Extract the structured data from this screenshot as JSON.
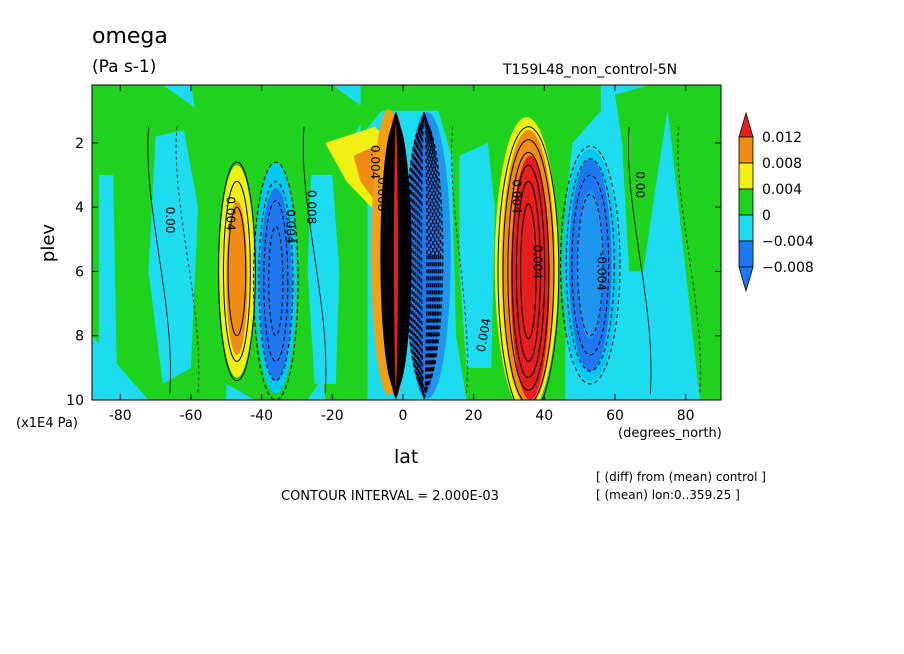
{
  "chart_data": {
    "type": "heatmap",
    "title": "omega",
    "units_label": "(Pa s-1)",
    "experiment_label": "T159L48_non_control-5N",
    "xlabel": "lat",
    "x_unit_label": "(degrees_north)",
    "ylabel": "plev",
    "y_unit_label": "(x1E4 Pa)",
    "xlim": [
      -88,
      90
    ],
    "ylim": [
      0.2,
      10
    ],
    "y_reversed": true,
    "x_ticks": [
      -80,
      -60,
      -40,
      -20,
      0,
      20,
      40,
      60,
      80
    ],
    "x_tick_labels": [
      "-80",
      "-60",
      "-40",
      "-20",
      "0",
      "20",
      "40",
      "60",
      "80"
    ],
    "y_ticks": [
      2,
      4,
      6,
      8,
      10
    ],
    "y_tick_labels": [
      "2",
      "4",
      "6",
      "8",
      "10"
    ],
    "contour_interval_label": "CONTOUR INTERVAL = 2.000E-03",
    "notes": [
      "[ (diff) from (mean) control ]",
      "[ (mean) lon:0..359.25 ]"
    ],
    "colorbar": {
      "levels": [
        0.012,
        0.008,
        0.004,
        0,
        -0.004,
        -0.008
      ],
      "labels": [
        "0.012",
        "0.008",
        "0.004",
        "0",
        "−0.004",
        "−0.008"
      ],
      "colors": [
        "#e61e1e",
        "#f08c14",
        "#f0f014",
        "#1ed21e",
        "#1edcf0",
        "#1e78f0"
      ]
    },
    "background_color": "#1edcf0",
    "features": [
      {
        "name": "equatorial-positive-cell",
        "value": 0.012,
        "lat": [
          -4,
          1
        ],
        "plev": [
          1.1,
          9.9
        ],
        "color": "#e61e1e"
      },
      {
        "name": "equatorial-negative-cell",
        "value": -0.012,
        "lat": [
          1,
          10
        ],
        "plev": [
          1.1,
          9.9
        ],
        "color": "#1e78f0"
      },
      {
        "name": "nh-positive-core",
        "value": 0.012,
        "lat": [
          31,
          41
        ],
        "plev": [
          2.5,
          9.5
        ],
        "color": "#e61e1e"
      },
      {
        "name": "nh-negative-cell",
        "value": -0.008,
        "lat": [
          45,
          60
        ],
        "plev": [
          2.3,
          9.2
        ],
        "color": "#1e78f0"
      },
      {
        "name": "sh-positive-cell",
        "value": 0.006,
        "lat": [
          -51,
          -43
        ],
        "plev": [
          2.8,
          9.0
        ],
        "color": "#f08c14"
      },
      {
        "name": "sh-negative-cell",
        "value": -0.008,
        "lat": [
          -42,
          -30
        ],
        "plev": [
          2.5,
          9.7
        ],
        "color": "#1e78f0"
      }
    ],
    "contour_labels": [
      "0.004",
      "0.004",
      "0.008",
      "-0.004",
      "0.004",
      "0.008",
      "-0.004",
      "0.004",
      "-0.004",
      "0.004",
      "0.00",
      "0.00"
    ]
  }
}
